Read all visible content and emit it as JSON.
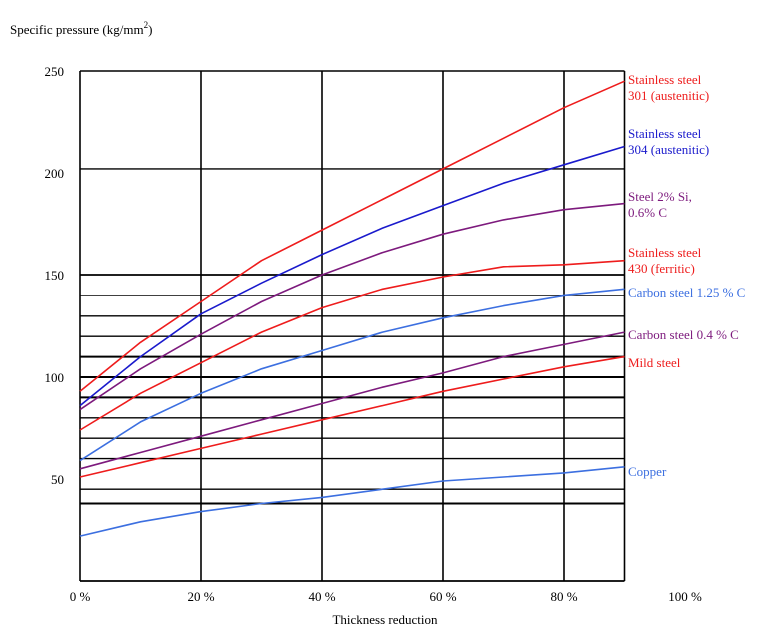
{
  "chart_data": {
    "type": "line",
    "title": "",
    "ylabel": "Specific pressure (kg/mm",
    "ylabel_sup": "2",
    "ylabel_end": ")",
    "xlabel": "Thickness reduction",
    "xlim": [
      0,
      100
    ],
    "ylim": [
      0,
      250
    ],
    "xticks": [
      0,
      20,
      40,
      60,
      80,
      100
    ],
    "xtick_labels": [
      "0 %",
      "20 %",
      "40 %",
      "60 %",
      "80 %",
      "100 %"
    ],
    "yticks": [
      50,
      100,
      150,
      200,
      250
    ],
    "ytick_labels": [
      "50",
      "100",
      "150",
      "200",
      "250"
    ],
    "grid": true,
    "series": [
      {
        "name": "Stainless steel",
        "name2": "301 (austenitic)",
        "color": "#ee1c1c",
        "x": [
          0,
          10,
          20,
          30,
          40,
          50,
          60,
          70,
          80,
          90
        ],
        "y": [
          93,
          117,
          137,
          157,
          172,
          187,
          202,
          217,
          232,
          245
        ]
      },
      {
        "name": "Stainless steel",
        "name2": "304 (austenitic)",
        "color": "#1a1acc",
        "x": [
          0,
          10,
          20,
          30,
          40,
          50,
          60,
          70,
          80,
          90
        ],
        "y": [
          86,
          110,
          131,
          146,
          160,
          173,
          184,
          195,
          204,
          213
        ]
      },
      {
        "name": "Steel 2% Si,",
        "name2": "0.6% C",
        "color": "#7d1a7d",
        "x": [
          0,
          10,
          20,
          30,
          40,
          50,
          60,
          70,
          80,
          90
        ],
        "y": [
          84,
          104,
          121,
          137,
          150,
          161,
          170,
          177,
          182,
          185
        ]
      },
      {
        "name": "Stainless steel",
        "name2": "430 (ferritic)",
        "color": "#ee1c1c",
        "x": [
          0,
          10,
          20,
          30,
          40,
          50,
          60,
          70,
          80,
          90
        ],
        "y": [
          74,
          92,
          107,
          122,
          134,
          143,
          149,
          154,
          155,
          157
        ]
      },
      {
        "name": "Carbon steel 1.25 % C",
        "name2": "",
        "color": "#3c6fe0",
        "x": [
          0,
          10,
          20,
          30,
          40,
          50,
          60,
          70,
          80,
          90
        ],
        "y": [
          59,
          78,
          92,
          104,
          113,
          122,
          129,
          135,
          140,
          143
        ]
      },
      {
        "name": "Carbon steel 0.4 % C",
        "name2": "",
        "color": "#7d1a7d",
        "x": [
          0,
          10,
          20,
          30,
          40,
          50,
          60,
          70,
          80,
          90
        ],
        "y": [
          55,
          63,
          71,
          79,
          87,
          95,
          102,
          110,
          116,
          122
        ]
      },
      {
        "name": "Mild steel",
        "name2": "",
        "color": "#ee1c1c",
        "x": [
          0,
          10,
          20,
          30,
          40,
          50,
          60,
          70,
          80,
          90
        ],
        "y": [
          51,
          58,
          65,
          72,
          79,
          86,
          93,
          99,
          105,
          110
        ]
      },
      {
        "name": "Copper",
        "name2": "",
        "color": "#3c6fe0",
        "x": [
          0,
          10,
          20,
          30,
          40,
          50,
          60,
          70,
          80,
          90
        ],
        "y": [
          22,
          29,
          34,
          38,
          41,
          45,
          49,
          51,
          53,
          56
        ]
      }
    ]
  }
}
